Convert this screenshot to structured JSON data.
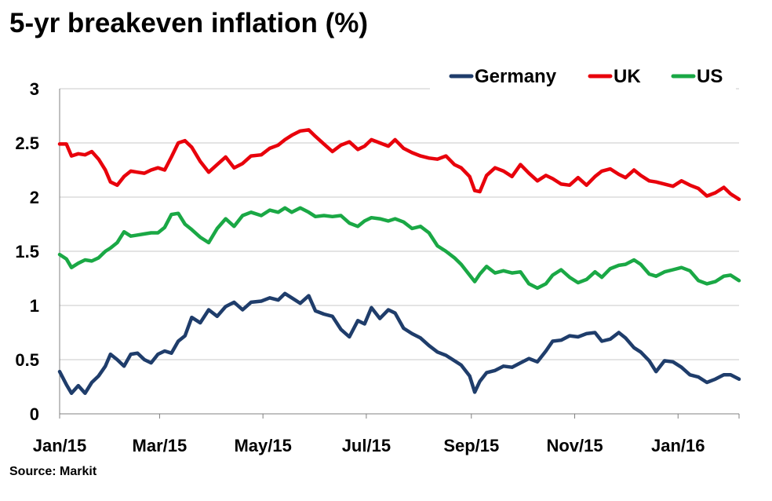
{
  "chart_data": {
    "type": "line",
    "title": "5-yr breakeven inflation (%)",
    "source": "Source: Markit",
    "xlabel": "",
    "ylabel": "",
    "x_ticks": [
      "Jan/15",
      "Mar/15",
      "May/15",
      "Jul/15",
      "Sep/15",
      "Nov/15",
      "Jan/16"
    ],
    "x_range": [
      "2015-01-01",
      "2016-02-06"
    ],
    "y_ticks": [
      "0",
      "0.5",
      "1",
      "1.5",
      "2",
      "2.5",
      "3"
    ],
    "ylim": [
      0,
      3
    ],
    "grid": "horizontal",
    "legend_position": "top-right",
    "series": [
      {
        "name": "Germany",
        "color": "#1f3d6b",
        "points": [
          [
            "2015-01-01",
            0.39
          ],
          [
            "2015-01-05",
            0.27
          ],
          [
            "2015-01-08",
            0.19
          ],
          [
            "2015-01-12",
            0.26
          ],
          [
            "2015-01-16",
            0.19
          ],
          [
            "2015-01-20",
            0.29
          ],
          [
            "2015-01-24",
            0.35
          ],
          [
            "2015-01-28",
            0.44
          ],
          [
            "2015-01-31",
            0.55
          ],
          [
            "2015-02-04",
            0.5
          ],
          [
            "2015-02-08",
            0.44
          ],
          [
            "2015-02-12",
            0.55
          ],
          [
            "2015-02-16",
            0.56
          ],
          [
            "2015-02-20",
            0.5
          ],
          [
            "2015-02-24",
            0.47
          ],
          [
            "2015-02-28",
            0.55
          ],
          [
            "2015-03-04",
            0.58
          ],
          [
            "2015-03-08",
            0.56
          ],
          [
            "2015-03-12",
            0.67
          ],
          [
            "2015-03-16",
            0.72
          ],
          [
            "2015-03-20",
            0.89
          ],
          [
            "2015-03-25",
            0.84
          ],
          [
            "2015-03-30",
            0.96
          ],
          [
            "2015-04-04",
            0.9
          ],
          [
            "2015-04-09",
            0.99
          ],
          [
            "2015-04-14",
            1.03
          ],
          [
            "2015-04-19",
            0.96
          ],
          [
            "2015-04-24",
            1.03
          ],
          [
            "2015-04-30",
            1.04
          ],
          [
            "2015-05-05",
            1.07
          ],
          [
            "2015-05-10",
            1.05
          ],
          [
            "2015-05-14",
            1.11
          ],
          [
            "2015-05-18",
            1.07
          ],
          [
            "2015-05-23",
            1.02
          ],
          [
            "2015-05-28",
            1.09
          ],
          [
            "2015-06-01",
            0.95
          ],
          [
            "2015-06-06",
            0.92
          ],
          [
            "2015-06-11",
            0.9
          ],
          [
            "2015-06-16",
            0.78
          ],
          [
            "2015-06-21",
            0.71
          ],
          [
            "2015-06-26",
            0.86
          ],
          [
            "2015-06-30",
            0.83
          ],
          [
            "2015-07-04",
            0.98
          ],
          [
            "2015-07-09",
            0.88
          ],
          [
            "2015-07-14",
            0.96
          ],
          [
            "2015-07-18",
            0.93
          ],
          [
            "2015-07-23",
            0.79
          ],
          [
            "2015-07-28",
            0.74
          ],
          [
            "2015-08-02",
            0.7
          ],
          [
            "2015-08-07",
            0.63
          ],
          [
            "2015-08-12",
            0.57
          ],
          [
            "2015-08-17",
            0.54
          ],
          [
            "2015-08-22",
            0.49
          ],
          [
            "2015-08-26",
            0.45
          ],
          [
            "2015-08-31",
            0.35
          ],
          [
            "2015-09-03",
            0.2
          ],
          [
            "2015-09-06",
            0.3
          ],
          [
            "2015-09-10",
            0.38
          ],
          [
            "2015-09-15",
            0.4
          ],
          [
            "2015-09-20",
            0.44
          ],
          [
            "2015-09-25",
            0.43
          ],
          [
            "2015-09-30",
            0.47
          ],
          [
            "2015-10-05",
            0.51
          ],
          [
            "2015-10-10",
            0.48
          ],
          [
            "2015-10-15",
            0.58
          ],
          [
            "2015-10-19",
            0.67
          ],
          [
            "2015-10-24",
            0.68
          ],
          [
            "2015-10-29",
            0.72
          ],
          [
            "2015-11-03",
            0.71
          ],
          [
            "2015-11-08",
            0.74
          ],
          [
            "2015-11-13",
            0.75
          ],
          [
            "2015-11-17",
            0.67
          ],
          [
            "2015-11-22",
            0.69
          ],
          [
            "2015-11-27",
            0.75
          ],
          [
            "2015-12-01",
            0.7
          ],
          [
            "2015-12-06",
            0.61
          ],
          [
            "2015-12-10",
            0.57
          ],
          [
            "2015-12-15",
            0.49
          ],
          [
            "2015-12-19",
            0.39
          ],
          [
            "2015-12-24",
            0.49
          ],
          [
            "2015-12-29",
            0.48
          ],
          [
            "2016-01-03",
            0.43
          ],
          [
            "2016-01-08",
            0.36
          ],
          [
            "2016-01-13",
            0.34
          ],
          [
            "2016-01-18",
            0.29
          ],
          [
            "2016-01-23",
            0.32
          ],
          [
            "2016-01-28",
            0.36
          ],
          [
            "2016-02-01",
            0.36
          ],
          [
            "2016-02-06",
            0.32
          ]
        ]
      },
      {
        "name": "UK",
        "color": "#e8000b",
        "points": [
          [
            "2015-01-01",
            2.49
          ],
          [
            "2015-01-05",
            2.49
          ],
          [
            "2015-01-08",
            2.38
          ],
          [
            "2015-01-12",
            2.4
          ],
          [
            "2015-01-16",
            2.39
          ],
          [
            "2015-01-20",
            2.42
          ],
          [
            "2015-01-24",
            2.35
          ],
          [
            "2015-01-28",
            2.25
          ],
          [
            "2015-01-31",
            2.14
          ],
          [
            "2015-02-04",
            2.11
          ],
          [
            "2015-02-08",
            2.19
          ],
          [
            "2015-02-12",
            2.24
          ],
          [
            "2015-02-16",
            2.23
          ],
          [
            "2015-02-20",
            2.22
          ],
          [
            "2015-02-24",
            2.25
          ],
          [
            "2015-02-28",
            2.27
          ],
          [
            "2015-03-04",
            2.25
          ],
          [
            "2015-03-08",
            2.37
          ],
          [
            "2015-03-12",
            2.5
          ],
          [
            "2015-03-16",
            2.52
          ],
          [
            "2015-03-20",
            2.46
          ],
          [
            "2015-03-25",
            2.33
          ],
          [
            "2015-03-30",
            2.23
          ],
          [
            "2015-04-04",
            2.3
          ],
          [
            "2015-04-09",
            2.37
          ],
          [
            "2015-04-14",
            2.27
          ],
          [
            "2015-04-19",
            2.31
          ],
          [
            "2015-04-24",
            2.38
          ],
          [
            "2015-04-30",
            2.39
          ],
          [
            "2015-05-05",
            2.45
          ],
          [
            "2015-05-10",
            2.48
          ],
          [
            "2015-05-14",
            2.53
          ],
          [
            "2015-05-18",
            2.57
          ],
          [
            "2015-05-23",
            2.61
          ],
          [
            "2015-05-28",
            2.62
          ],
          [
            "2015-06-01",
            2.56
          ],
          [
            "2015-06-06",
            2.49
          ],
          [
            "2015-06-11",
            2.42
          ],
          [
            "2015-06-16",
            2.48
          ],
          [
            "2015-06-21",
            2.51
          ],
          [
            "2015-06-26",
            2.44
          ],
          [
            "2015-06-30",
            2.47
          ],
          [
            "2015-07-04",
            2.53
          ],
          [
            "2015-07-09",
            2.5
          ],
          [
            "2015-07-14",
            2.47
          ],
          [
            "2015-07-18",
            2.53
          ],
          [
            "2015-07-23",
            2.45
          ],
          [
            "2015-07-28",
            2.41
          ],
          [
            "2015-08-02",
            2.38
          ],
          [
            "2015-08-07",
            2.36
          ],
          [
            "2015-08-12",
            2.35
          ],
          [
            "2015-08-17",
            2.38
          ],
          [
            "2015-08-22",
            2.3
          ],
          [
            "2015-08-26",
            2.27
          ],
          [
            "2015-08-31",
            2.19
          ],
          [
            "2015-09-03",
            2.06
          ],
          [
            "2015-09-06",
            2.05
          ],
          [
            "2015-09-10",
            2.2
          ],
          [
            "2015-09-15",
            2.27
          ],
          [
            "2015-09-20",
            2.24
          ],
          [
            "2015-09-25",
            2.19
          ],
          [
            "2015-09-30",
            2.3
          ],
          [
            "2015-10-05",
            2.22
          ],
          [
            "2015-10-10",
            2.15
          ],
          [
            "2015-10-15",
            2.2
          ],
          [
            "2015-10-19",
            2.17
          ],
          [
            "2015-10-24",
            2.12
          ],
          [
            "2015-10-29",
            2.11
          ],
          [
            "2015-11-03",
            2.18
          ],
          [
            "2015-11-08",
            2.11
          ],
          [
            "2015-11-13",
            2.19
          ],
          [
            "2015-11-17",
            2.24
          ],
          [
            "2015-11-22",
            2.26
          ],
          [
            "2015-11-27",
            2.21
          ],
          [
            "2015-12-01",
            2.18
          ],
          [
            "2015-12-06",
            2.25
          ],
          [
            "2015-12-10",
            2.2
          ],
          [
            "2015-12-15",
            2.15
          ],
          [
            "2015-12-19",
            2.14
          ],
          [
            "2015-12-24",
            2.12
          ],
          [
            "2015-12-29",
            2.1
          ],
          [
            "2016-01-03",
            2.15
          ],
          [
            "2016-01-08",
            2.11
          ],
          [
            "2016-01-13",
            2.08
          ],
          [
            "2016-01-18",
            2.01
          ],
          [
            "2016-01-23",
            2.04
          ],
          [
            "2016-01-28",
            2.09
          ],
          [
            "2016-02-01",
            2.03
          ],
          [
            "2016-02-06",
            1.98
          ]
        ]
      },
      {
        "name": "US",
        "color": "#1aa845",
        "points": [
          [
            "2015-01-01",
            1.47
          ],
          [
            "2015-01-05",
            1.43
          ],
          [
            "2015-01-08",
            1.35
          ],
          [
            "2015-01-12",
            1.39
          ],
          [
            "2015-01-16",
            1.42
          ],
          [
            "2015-01-20",
            1.41
          ],
          [
            "2015-01-24",
            1.44
          ],
          [
            "2015-01-28",
            1.5
          ],
          [
            "2015-01-31",
            1.53
          ],
          [
            "2015-02-04",
            1.58
          ],
          [
            "2015-02-08",
            1.68
          ],
          [
            "2015-02-12",
            1.64
          ],
          [
            "2015-02-16",
            1.65
          ],
          [
            "2015-02-20",
            1.66
          ],
          [
            "2015-02-24",
            1.67
          ],
          [
            "2015-02-28",
            1.67
          ],
          [
            "2015-03-04",
            1.72
          ],
          [
            "2015-03-08",
            1.84
          ],
          [
            "2015-03-12",
            1.85
          ],
          [
            "2015-03-16",
            1.75
          ],
          [
            "2015-03-20",
            1.7
          ],
          [
            "2015-03-25",
            1.63
          ],
          [
            "2015-03-30",
            1.58
          ],
          [
            "2015-04-04",
            1.71
          ],
          [
            "2015-04-09",
            1.8
          ],
          [
            "2015-04-14",
            1.73
          ],
          [
            "2015-04-19",
            1.83
          ],
          [
            "2015-04-24",
            1.86
          ],
          [
            "2015-04-30",
            1.83
          ],
          [
            "2015-05-05",
            1.88
          ],
          [
            "2015-05-10",
            1.86
          ],
          [
            "2015-05-14",
            1.9
          ],
          [
            "2015-05-18",
            1.86
          ],
          [
            "2015-05-23",
            1.9
          ],
          [
            "2015-05-28",
            1.86
          ],
          [
            "2015-06-01",
            1.82
          ],
          [
            "2015-06-06",
            1.83
          ],
          [
            "2015-06-11",
            1.82
          ],
          [
            "2015-06-16",
            1.83
          ],
          [
            "2015-06-21",
            1.76
          ],
          [
            "2015-06-26",
            1.73
          ],
          [
            "2015-06-30",
            1.78
          ],
          [
            "2015-07-04",
            1.81
          ],
          [
            "2015-07-09",
            1.8
          ],
          [
            "2015-07-14",
            1.78
          ],
          [
            "2015-07-18",
            1.8
          ],
          [
            "2015-07-23",
            1.77
          ],
          [
            "2015-07-28",
            1.71
          ],
          [
            "2015-08-02",
            1.73
          ],
          [
            "2015-08-07",
            1.67
          ],
          [
            "2015-08-12",
            1.55
          ],
          [
            "2015-08-17",
            1.5
          ],
          [
            "2015-08-22",
            1.44
          ],
          [
            "2015-08-26",
            1.38
          ],
          [
            "2015-08-31",
            1.28
          ],
          [
            "2015-09-03",
            1.22
          ],
          [
            "2015-09-06",
            1.29
          ],
          [
            "2015-09-10",
            1.36
          ],
          [
            "2015-09-15",
            1.3
          ],
          [
            "2015-09-20",
            1.32
          ],
          [
            "2015-09-25",
            1.3
          ],
          [
            "2015-09-30",
            1.31
          ],
          [
            "2015-10-05",
            1.2
          ],
          [
            "2015-10-10",
            1.16
          ],
          [
            "2015-10-15",
            1.2
          ],
          [
            "2015-10-19",
            1.28
          ],
          [
            "2015-10-24",
            1.33
          ],
          [
            "2015-10-29",
            1.26
          ],
          [
            "2015-11-03",
            1.21
          ],
          [
            "2015-11-08",
            1.24
          ],
          [
            "2015-11-13",
            1.31
          ],
          [
            "2015-11-17",
            1.26
          ],
          [
            "2015-11-22",
            1.34
          ],
          [
            "2015-11-27",
            1.37
          ],
          [
            "2015-12-01",
            1.38
          ],
          [
            "2015-12-06",
            1.42
          ],
          [
            "2015-12-10",
            1.38
          ],
          [
            "2015-12-15",
            1.29
          ],
          [
            "2015-12-19",
            1.27
          ],
          [
            "2015-12-24",
            1.31
          ],
          [
            "2015-12-29",
            1.33
          ],
          [
            "2016-01-03",
            1.35
          ],
          [
            "2016-01-08",
            1.32
          ],
          [
            "2016-01-13",
            1.23
          ],
          [
            "2016-01-18",
            1.2
          ],
          [
            "2016-01-23",
            1.22
          ],
          [
            "2016-01-28",
            1.27
          ],
          [
            "2016-02-01",
            1.28
          ],
          [
            "2016-02-06",
            1.23
          ]
        ]
      }
    ]
  }
}
